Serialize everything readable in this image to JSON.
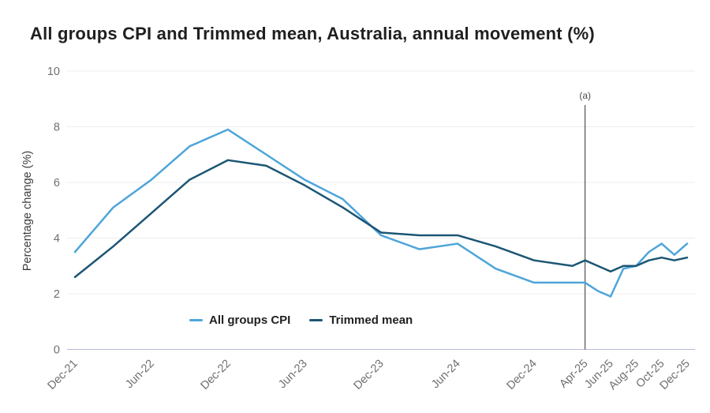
{
  "title": "All groups CPI and Trimmed mean, Australia, annual movement (%)",
  "chart_data": {
    "type": "line",
    "title": "All groups CPI and Trimmed mean, Australia, annual movement (%)",
    "xlabel": "",
    "ylabel": "Percentage change (%)",
    "ylim": [
      0,
      10
    ],
    "yticks": [
      0,
      2,
      4,
      6,
      8,
      10
    ],
    "grid": "horizontal",
    "legend_position": "bottom-center",
    "x_unit": "months since Dec-2021 (quarterly points to Mar-25, monthly from Apr-25)",
    "xticks": [
      [
        "Dec-21",
        0
      ],
      [
        "Jun-22",
        6
      ],
      [
        "Dec-22",
        12
      ],
      [
        "Jun-23",
        18
      ],
      [
        "Dec-23",
        24
      ],
      [
        "Jun-24",
        30
      ],
      [
        "Dec-24",
        36
      ],
      [
        "Apr-25",
        40
      ],
      [
        "Jun-25",
        42
      ],
      [
        "Aug-25",
        44
      ],
      [
        "Oct-25",
        46
      ],
      [
        "Dec-25",
        48
      ]
    ],
    "annotation": {
      "label": "(a)",
      "m": 40,
      "type": "vertical-line"
    },
    "colors": {
      "grid": "#ececec",
      "baseline": "#b7badc",
      "annotation": "#2e2e2e"
    },
    "series": [
      {
        "name": "All groups CPI",
        "color": "#4EA5DA",
        "points": [
          [
            "Dec-21",
            0,
            3.5
          ],
          [
            "Mar-22",
            3,
            5.1
          ],
          [
            "Jun-22",
            6,
            6.1
          ],
          [
            "Sep-22",
            9,
            7.3
          ],
          [
            "Dec-22",
            12,
            7.9
          ],
          [
            "Mar-23",
            15,
            7.0
          ],
          [
            "Jun-23",
            18,
            6.1
          ],
          [
            "Sep-23",
            21,
            5.4
          ],
          [
            "Dec-23",
            24,
            4.1
          ],
          [
            "Mar-24",
            27,
            3.6
          ],
          [
            "Jun-24",
            30,
            3.8
          ],
          [
            "Sep-24",
            33,
            2.9
          ],
          [
            "Dec-24",
            36,
            2.4
          ],
          [
            "Mar-25",
            39,
            2.4
          ],
          [
            "Apr-25",
            40,
            2.4
          ],
          [
            "May-25",
            41,
            2.1
          ],
          [
            "Jun-25",
            42,
            1.9
          ],
          [
            "Jul-25",
            43,
            2.9
          ],
          [
            "Aug-25",
            44,
            3.0
          ],
          [
            "Sep-25",
            45,
            3.5
          ],
          [
            "Oct-25",
            46,
            3.8
          ],
          [
            "Nov-25",
            47,
            3.4
          ],
          [
            "Dec-25",
            48,
            3.8
          ]
        ]
      },
      {
        "name": "Trimmed mean",
        "color": "#1C5674",
        "points": [
          [
            "Dec-21",
            0,
            2.6
          ],
          [
            "Mar-22",
            3,
            3.7
          ],
          [
            "Jun-22",
            6,
            4.9
          ],
          [
            "Sep-22",
            9,
            6.1
          ],
          [
            "Dec-22",
            12,
            6.8
          ],
          [
            "Mar-23",
            15,
            6.6
          ],
          [
            "Jun-23",
            18,
            5.9
          ],
          [
            "Sep-23",
            21,
            5.1
          ],
          [
            "Dec-23",
            24,
            4.2
          ],
          [
            "Mar-24",
            27,
            4.1
          ],
          [
            "Jun-24",
            30,
            4.1
          ],
          [
            "Sep-24",
            33,
            3.7
          ],
          [
            "Dec-24",
            36,
            3.2
          ],
          [
            "Mar-25",
            39,
            3.0
          ],
          [
            "Apr-25",
            40,
            3.2
          ],
          [
            "May-25",
            41,
            3.0
          ],
          [
            "Jun-25",
            42,
            2.8
          ],
          [
            "Jul-25",
            43,
            3.0
          ],
          [
            "Aug-25",
            44,
            3.0
          ],
          [
            "Sep-25",
            45,
            3.2
          ],
          [
            "Oct-25",
            46,
            3.3
          ],
          [
            "Nov-25",
            47,
            3.2
          ],
          [
            "Dec-25",
            48,
            3.3
          ]
        ]
      }
    ]
  }
}
